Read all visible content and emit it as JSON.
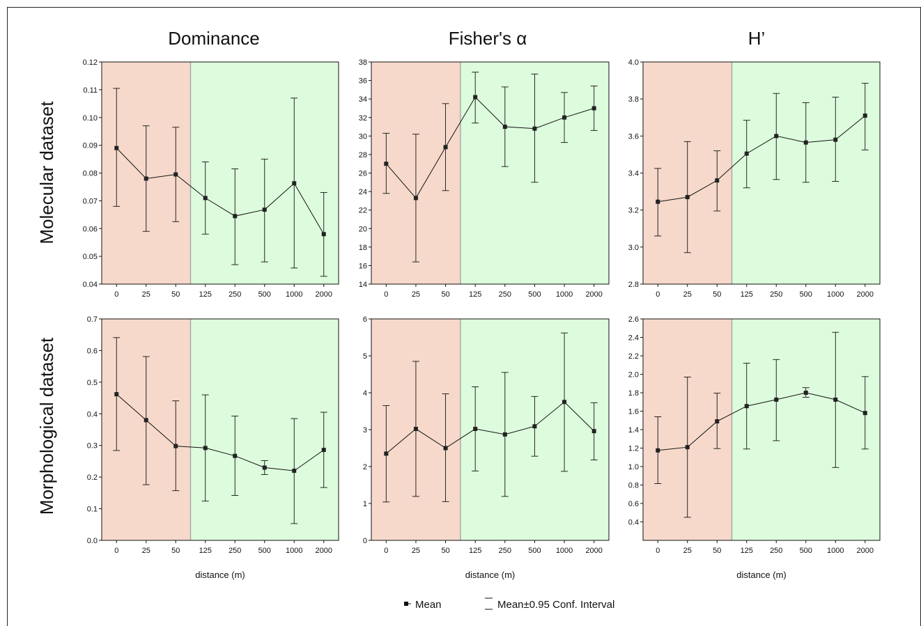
{
  "column_titles": [
    "Dominance",
    "Fisher's α",
    "H’"
  ],
  "row_titles": [
    "Molecular dataset",
    "Morphological dataset"
  ],
  "colors": {
    "zone_left": "#f6d9cb",
    "zone_right": "#ddfcdd",
    "zone_border": "#a9a9a9",
    "line": "#111111"
  },
  "legend": {
    "mean": "Mean",
    "ci": "Mean±0.95 Conf. Interval",
    "mean_marker": "square-marker",
    "ci_marker": "whisker-marker"
  },
  "chart_data": [
    {
      "type": "line",
      "row": 0,
      "col": 0,
      "categories": [
        "0",
        "25",
        "50",
        "125",
        "250",
        "500",
        "1000",
        "2000"
      ],
      "ylim": [
        0.04,
        0.12
      ],
      "yticks": [
        "0.04",
        "0.05",
        "0.06",
        "0.07",
        "0.08",
        "0.09",
        "0.10",
        "0.11",
        "0.12"
      ],
      "xlabel": "",
      "series": [
        {
          "values": [
            0.089,
            0.078,
            0.0795,
            0.071,
            0.0645,
            0.0668,
            0.0763,
            0.058
          ],
          "ci_lower": [
            0.068,
            0.059,
            0.0625,
            0.058,
            0.047,
            0.048,
            0.0458,
            0.0428
          ],
          "ci_upper": [
            0.1105,
            0.097,
            0.0965,
            0.084,
            0.0815,
            0.085,
            0.107,
            0.073
          ]
        }
      ],
      "shaded_split_after": "50"
    },
    {
      "type": "line",
      "row": 0,
      "col": 1,
      "categories": [
        "0",
        "25",
        "50",
        "125",
        "250",
        "500",
        "1000",
        "2000"
      ],
      "ylim": [
        14,
        38
      ],
      "yticks": [
        "14",
        "16",
        "18",
        "20",
        "22",
        "24",
        "26",
        "28",
        "30",
        "32",
        "34",
        "36",
        "38"
      ],
      "xlabel": "",
      "series": [
        {
          "values": [
            27.0,
            23.3,
            28.8,
            34.2,
            31.0,
            30.8,
            32.0,
            33.0
          ],
          "ci_lower": [
            23.8,
            16.4,
            24.1,
            31.4,
            26.7,
            25.0,
            29.3,
            30.6
          ],
          "ci_upper": [
            30.3,
            30.2,
            33.5,
            36.9,
            35.3,
            36.7,
            34.7,
            35.4
          ]
        }
      ],
      "shaded_split_after": "50"
    },
    {
      "type": "line",
      "row": 0,
      "col": 2,
      "categories": [
        "0",
        "25",
        "50",
        "125",
        "250",
        "500",
        "1000",
        "2000"
      ],
      "ylim": [
        2.8,
        4.0
      ],
      "yticks": [
        "2.8",
        "3.0",
        "3.2",
        "3.4",
        "3.6",
        "3.8",
        "4.0"
      ],
      "xlabel": "",
      "series": [
        {
          "values": [
            3.245,
            3.27,
            3.36,
            3.505,
            3.6,
            3.565,
            3.58,
            3.71
          ],
          "ci_lower": [
            3.06,
            2.97,
            3.195,
            3.32,
            3.365,
            3.35,
            3.355,
            3.525
          ],
          "ci_upper": [
            3.425,
            3.57,
            3.52,
            3.685,
            3.83,
            3.78,
            3.81,
            3.885
          ]
        }
      ],
      "shaded_split_after": "50"
    },
    {
      "type": "line",
      "row": 1,
      "col": 0,
      "categories": [
        "0",
        "25",
        "50",
        "125",
        "250",
        "500",
        "1000",
        "2000"
      ],
      "ylim": [
        0.0,
        0.7
      ],
      "yticks": [
        "0.0",
        "0.1",
        "0.2",
        "0.3",
        "0.4",
        "0.5",
        "0.6",
        "0.7"
      ],
      "xlabel": "distance (m)",
      "series": [
        {
          "values": [
            0.462,
            0.38,
            0.298,
            0.292,
            0.267,
            0.23,
            0.22,
            0.286
          ],
          "ci_lower": [
            0.284,
            0.176,
            0.157,
            0.124,
            0.142,
            0.208,
            0.053,
            0.167
          ],
          "ci_upper": [
            0.641,
            0.581,
            0.441,
            0.46,
            0.393,
            0.252,
            0.385,
            0.405
          ]
        }
      ],
      "shaded_split_after": "50"
    },
    {
      "type": "line",
      "row": 1,
      "col": 1,
      "categories": [
        "0",
        "25",
        "50",
        "125",
        "250",
        "500",
        "1000",
        "2000"
      ],
      "ylim": [
        0,
        6
      ],
      "yticks": [
        "0",
        "1",
        "2",
        "3",
        "4",
        "5",
        "6"
      ],
      "xlabel": "distance (m)",
      "series": [
        {
          "values": [
            2.35,
            3.02,
            2.5,
            3.02,
            2.87,
            3.09,
            3.75,
            2.96
          ],
          "ci_lower": [
            1.04,
            1.19,
            1.05,
            1.88,
            1.19,
            2.28,
            1.87,
            2.18
          ],
          "ci_upper": [
            3.65,
            4.85,
            3.97,
            4.16,
            4.55,
            3.9,
            5.62,
            3.73
          ]
        }
      ],
      "shaded_split_after": "50"
    },
    {
      "type": "line",
      "row": 1,
      "col": 2,
      "categories": [
        "0",
        "25",
        "50",
        "125",
        "250",
        "500",
        "1000",
        "2000"
      ],
      "ylim": [
        0.2,
        2.6
      ],
      "yticks": [
        "0.4",
        "0.6",
        "0.8",
        "1.0",
        "1.2",
        "1.4",
        "1.6",
        "1.8",
        "2.0",
        "2.2",
        "2.4",
        "2.6"
      ],
      "xlabel": "distance (m)",
      "series": [
        {
          "values": [
            1.175,
            1.21,
            1.49,
            1.655,
            1.725,
            1.8,
            1.725,
            1.58
          ],
          "ci_lower": [
            0.815,
            0.45,
            1.195,
            1.19,
            1.28,
            1.75,
            0.99,
            1.19
          ],
          "ci_upper": [
            1.54,
            1.97,
            1.795,
            2.12,
            2.16,
            1.855,
            2.455,
            1.975
          ]
        }
      ],
      "shaded_split_after": "50"
    }
  ]
}
